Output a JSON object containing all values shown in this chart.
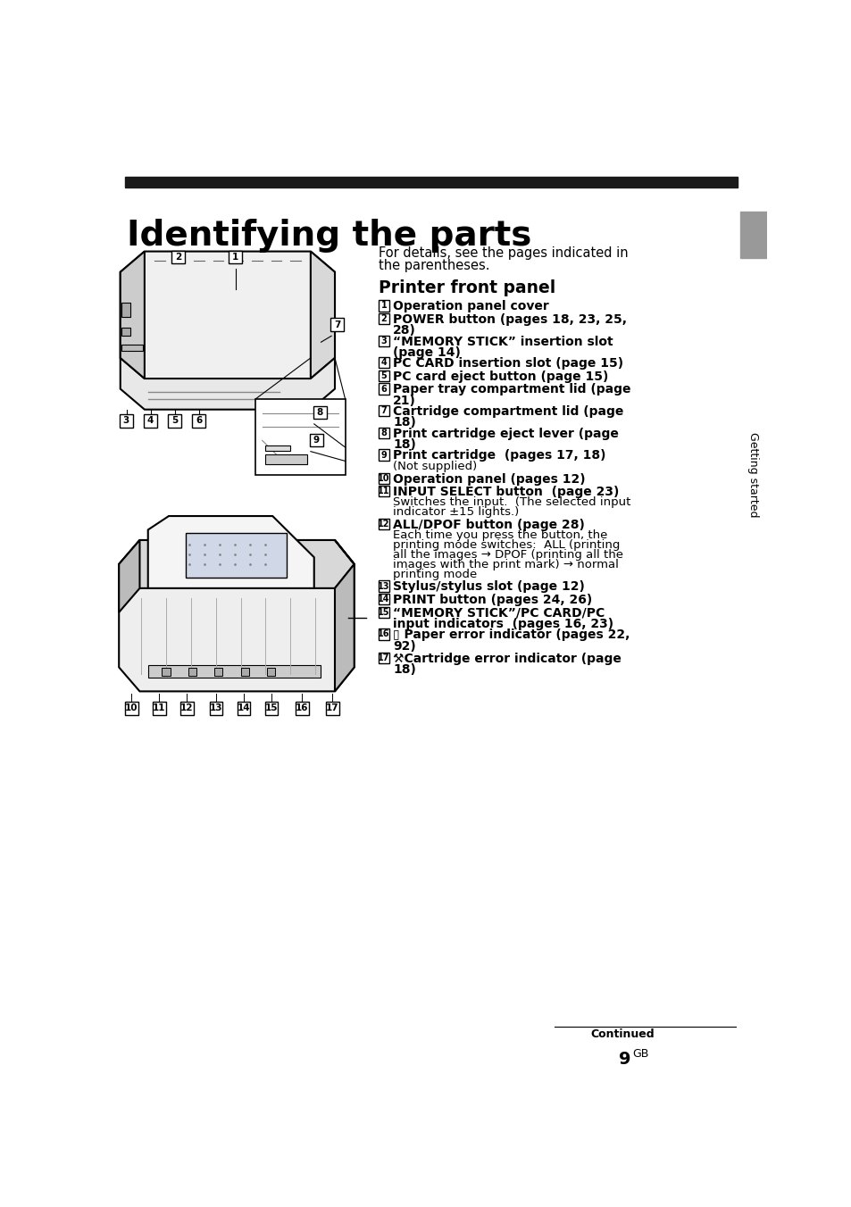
{
  "title": "Identifying the parts",
  "bg_color": "#ffffff",
  "black_bar_color": "#1a1a1a",
  "sidebar_color": "#999999",
  "sidebar_text": "Getting started",
  "intro_text1": "For details, see the pages indicated in",
  "intro_text2": "the parentheses.",
  "section_title": "Printer front panel",
  "items": [
    {
      "num": "1",
      "bold": "Operation panel cover",
      "normal": ""
    },
    {
      "num": "2",
      "bold": "POWER button (pages 18, 23, 25,",
      "bold2": "28)",
      "normal": ""
    },
    {
      "num": "3",
      "bold": "“MEMORY STICK” insertion slot",
      "bold2": "(page 14)",
      "normal": ""
    },
    {
      "num": "4",
      "bold": "PC CARD insertion slot (page 15)",
      "bold2": "",
      "normal": ""
    },
    {
      "num": "5",
      "bold": "PC card eject button (page 15)",
      "bold2": "",
      "normal": ""
    },
    {
      "num": "6",
      "bold": "Paper tray compartment lid (page",
      "bold2": "21)",
      "normal": ""
    },
    {
      "num": "7",
      "bold": "Cartridge compartment lid (page",
      "bold2": "18)",
      "normal": ""
    },
    {
      "num": "8",
      "bold": "Print cartridge eject lever (page",
      "bold2": "18)",
      "normal": ""
    },
    {
      "num": "9",
      "bold": "Print cartridge  (pages 17, 18)",
      "bold2": "",
      "normal": "(Not supplied)"
    },
    {
      "num": "10",
      "bold": "Operation panel (pages 12)",
      "bold2": "",
      "normal": ""
    },
    {
      "num": "11",
      "bold": "INPUT SELECT button  (page 23)",
      "bold2": "",
      "normal": "Switches the input.  (The selected input\nindicator ±15 lights.)"
    },
    {
      "num": "12",
      "bold": "ALL/DPOF button (page 28)",
      "bold2": "",
      "normal": "Each time you press the button, the\nprinting mode switches:  ALL (printing\nall the images → DPOF (printing all the\nimages with the print mark) → normal\nprinting mode"
    },
    {
      "num": "13",
      "bold": "Stylus/stylus slot (page 12)",
      "bold2": "",
      "normal": ""
    },
    {
      "num": "14",
      "bold": "PRINT button (pages 24, 26)",
      "bold2": "",
      "normal": ""
    },
    {
      "num": "15",
      "bold": "“MEMORY STICK”/PC CARD/PC",
      "bold2": "input indicators  (pages 16, 23)",
      "normal": ""
    },
    {
      "num": "16",
      "bold": "▯Paper error indicator (pages 22,",
      "bold2": "92)",
      "normal": ""
    },
    {
      "num": "17",
      "bold": "⚒Cartridge error indicator (page",
      "bold2": "18)",
      "normal": ""
    }
  ],
  "continued_text": "Continued",
  "page_num": "9",
  "page_suffix": "GB"
}
